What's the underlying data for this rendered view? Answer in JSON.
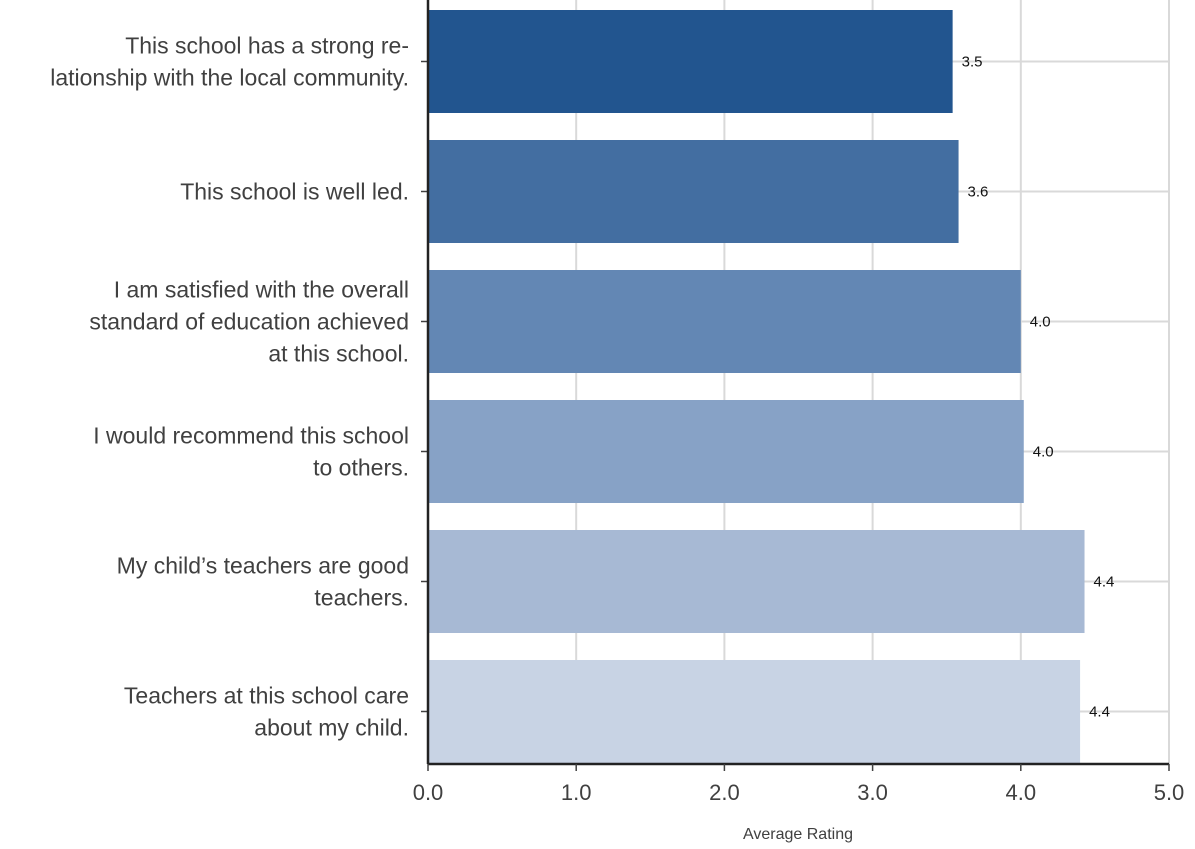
{
  "chart_data": {
    "type": "bar",
    "orientation": "horizontal",
    "title": "",
    "xlabel": "Average Rating",
    "ylabel": "",
    "xlim": [
      0,
      5
    ],
    "x_ticks": [
      "0.0",
      "1.0",
      "2.0",
      "3.0",
      "4.0",
      "5.0"
    ],
    "grid": true,
    "legend": "none",
    "categories": [
      [
        "This school has a strong re-",
        "lationship with the local community."
      ],
      [
        "This school is well led."
      ],
      [
        "I am satisfied with the overall",
        "standard of education achieved",
        "at this school."
      ],
      [
        "I would recommend this school",
        "to others."
      ],
      [
        "My child’s teachers are good",
        "teachers."
      ],
      [
        "Teachers at this school care",
        "about my child."
      ]
    ],
    "values": [
      3.54,
      3.58,
      4.0,
      4.02,
      4.43,
      4.4
    ],
    "value_labels": [
      "3.5",
      "3.6",
      "4.0",
      "4.0",
      "4.4",
      "4.4"
    ],
    "colors": [
      "#22558f",
      "#436ea1",
      "#6387b4",
      "#87a2c6",
      "#a7b9d4",
      "#c8d3e4"
    ]
  }
}
